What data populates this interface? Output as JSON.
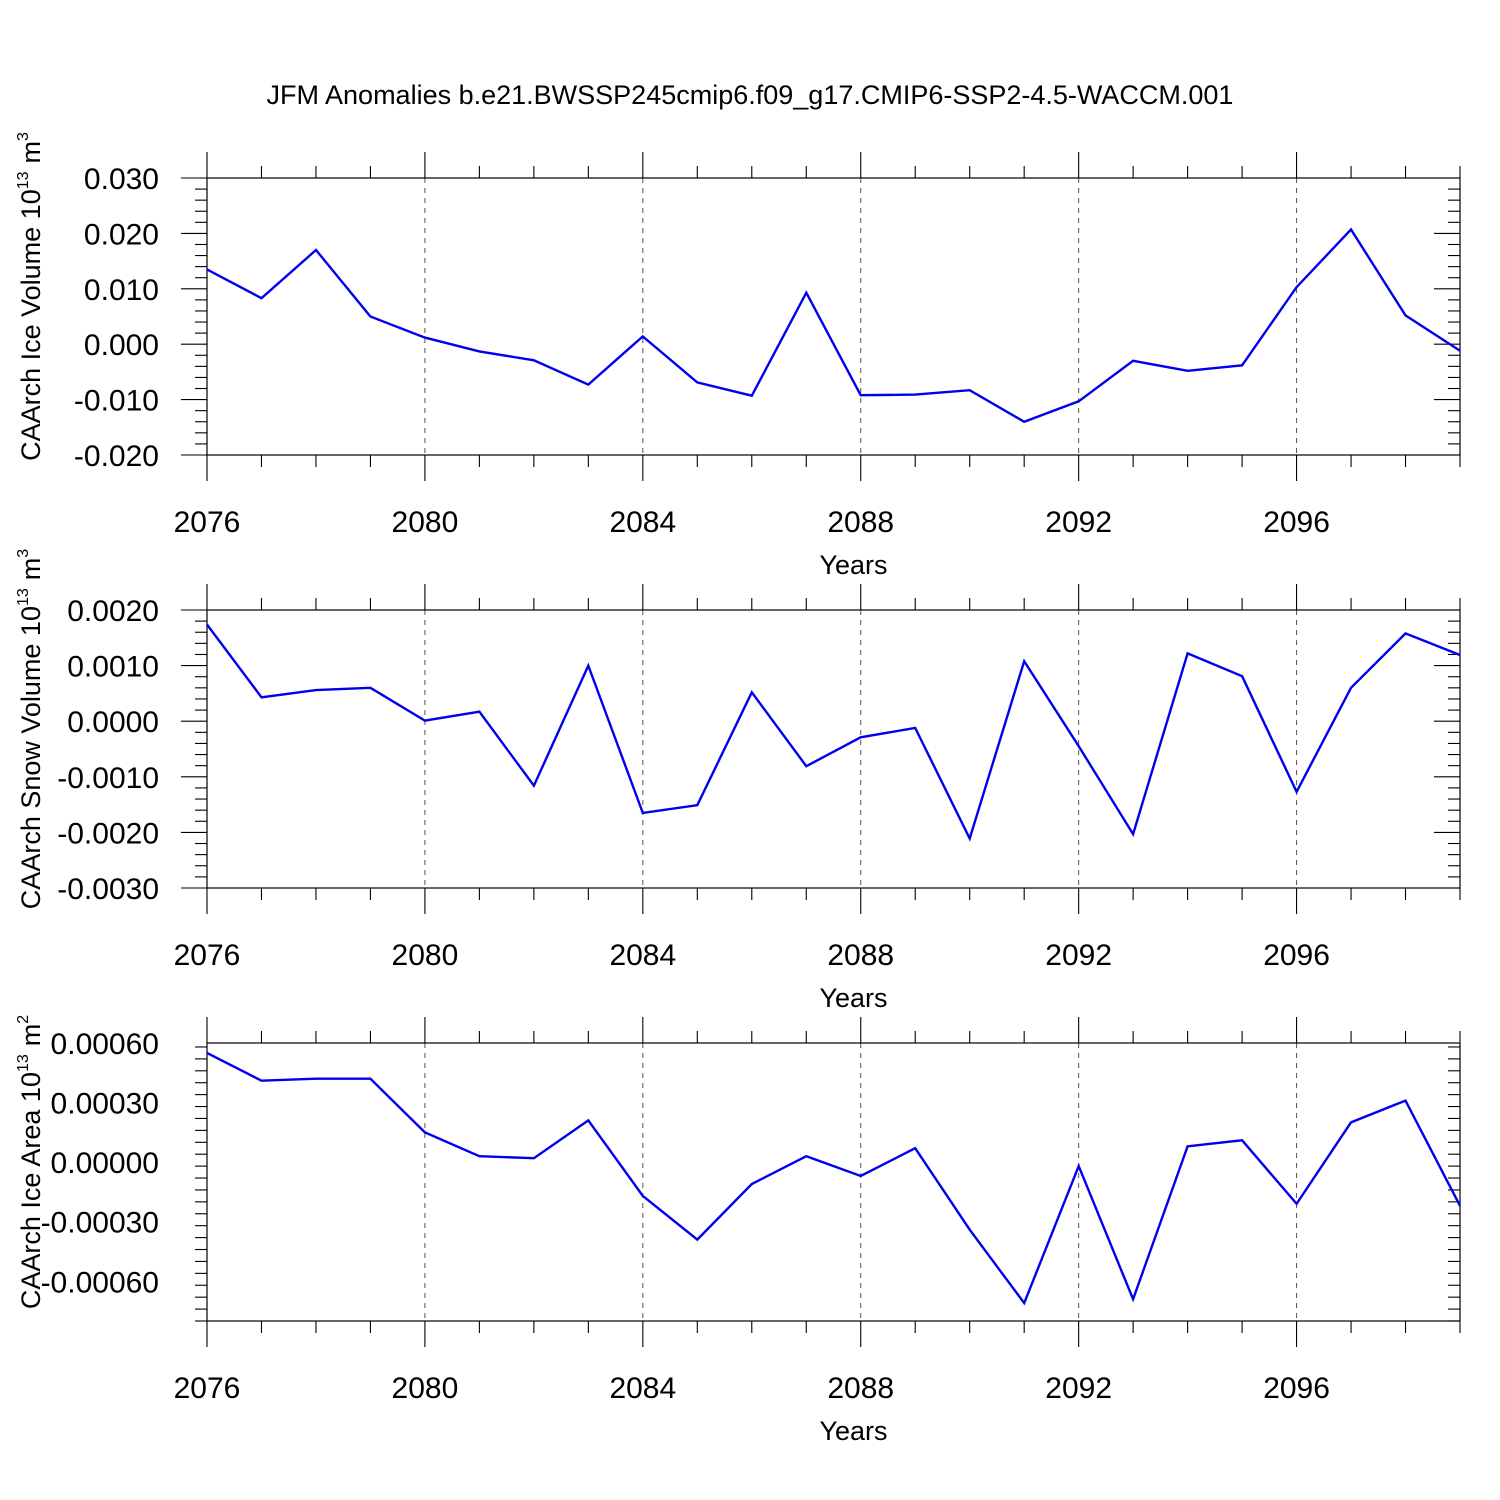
{
  "figure": {
    "title": "JFM Anomalies b.e21.BWSSP245cmip6.f09_g17.CMIP6-SSP2-4.5-WACCM.001"
  },
  "chart_data": [
    {
      "type": "line",
      "ylabel": "CAArch Ice Volume 10",
      "ylabel_sup": "13",
      "ylabel_unit": "m",
      "ylabel_unit_sup": "3",
      "xlabel": "Years",
      "xlim": [
        2076,
        2099
      ],
      "ylim": [
        -0.02,
        0.03
      ],
      "xticks": [
        2076,
        2080,
        2084,
        2088,
        2092,
        2096
      ],
      "xtick_labels": [
        "2076",
        "2080",
        "2084",
        "2088",
        "2092",
        "2096"
      ],
      "yticks": [
        -0.02,
        -0.01,
        0.0,
        0.01,
        0.02,
        0.03
      ],
      "ytick_labels": [
        "-0.020",
        "-0.010",
        "0.000",
        "0.010",
        "0.020",
        "0.030"
      ],
      "grid": "x-dashed",
      "line_color": "#0000ee",
      "x": [
        2076,
        2077,
        2078,
        2079,
        2080,
        2081,
        2082,
        2083,
        2084,
        2085,
        2086,
        2087,
        2088,
        2089,
        2090,
        2091,
        2092,
        2093,
        2094,
        2095,
        2096,
        2097,
        2098,
        2099
      ],
      "values": [
        0.0135,
        0.0083,
        0.017,
        0.005,
        0.0012,
        -0.0013,
        -0.0029,
        -0.0073,
        0.0014,
        -0.0069,
        -0.0093,
        0.0093,
        -0.0092,
        -0.0091,
        -0.0083,
        -0.014,
        -0.0103,
        -0.003,
        -0.0048,
        -0.0038,
        0.0103,
        0.0207,
        0.0052,
        -0.0012
      ]
    },
    {
      "type": "line",
      "ylabel": "CAArch Snow Volume 10",
      "ylabel_sup": "13",
      "ylabel_unit": "m",
      "ylabel_unit_sup": "3",
      "xlabel": "Years",
      "xlim": [
        2076,
        2099
      ],
      "ylim": [
        -0.003,
        0.002
      ],
      "xticks": [
        2076,
        2080,
        2084,
        2088,
        2092,
        2096
      ],
      "xtick_labels": [
        "2076",
        "2080",
        "2084",
        "2088",
        "2092",
        "2096"
      ],
      "yticks": [
        -0.003,
        -0.002,
        -0.001,
        0.0,
        0.001,
        0.002
      ],
      "ytick_labels": [
        "-0.0030",
        "-0.0020",
        "-0.0010",
        "0.0000",
        "0.0010",
        "0.0020"
      ],
      "grid": "x-dashed",
      "line_color": "#0000ee",
      "x": [
        2076,
        2077,
        2078,
        2079,
        2080,
        2081,
        2082,
        2083,
        2084,
        2085,
        2086,
        2087,
        2088,
        2089,
        2090,
        2091,
        2092,
        2093,
        2094,
        2095,
        2096,
        2097,
        2098,
        2099
      ],
      "values": [
        0.00174,
        0.00043,
        0.00056,
        0.0006,
        1e-05,
        0.00017,
        -0.00116,
        0.001,
        -0.00165,
        -0.00151,
        0.00052,
        -0.00081,
        -0.00029,
        -0.00012,
        -0.00211,
        0.00108,
        -0.00045,
        -0.00203,
        0.00122,
        0.00081,
        -0.00127,
        0.0006,
        0.00158,
        0.00119
      ]
    },
    {
      "type": "line",
      "ylabel": "CAArch Ice Area 10",
      "ylabel_sup": "13",
      "ylabel_unit": "m",
      "ylabel_unit_sup": "2",
      "xlabel": "Years",
      "xlim": [
        2076,
        2099
      ],
      "ylim": [
        -0.0008,
        0.0006
      ],
      "xticks": [
        2076,
        2080,
        2084,
        2088,
        2092,
        2096
      ],
      "xtick_labels": [
        "2076",
        "2080",
        "2084",
        "2088",
        "2092",
        "2096"
      ],
      "yticks": [
        -0.0006,
        -0.0003,
        0.0,
        0.0003,
        0.0006
      ],
      "ytick_labels": [
        "-0.00060",
        "-0.00030",
        "0.00000",
        "0.00030",
        "0.00060"
      ],
      "grid": "x-dashed",
      "line_color": "#0000ee",
      "x": [
        2076,
        2077,
        2078,
        2079,
        2080,
        2081,
        2082,
        2083,
        2084,
        2085,
        2086,
        2087,
        2088,
        2089,
        2090,
        2091,
        2092,
        2093,
        2094,
        2095,
        2096,
        2097,
        2098,
        2099
      ],
      "values": [
        0.00055,
        0.00041,
        0.00042,
        0.00042,
        0.00015,
        3e-05,
        2e-05,
        0.00021,
        -0.00017,
        -0.00039,
        -0.00011,
        3e-05,
        -7e-05,
        7e-05,
        -0.00034,
        -0.00071,
        -2e-05,
        -0.00069,
        8e-05,
        0.00011,
        -0.00021,
        0.0002,
        0.00031,
        -0.00022
      ]
    }
  ]
}
